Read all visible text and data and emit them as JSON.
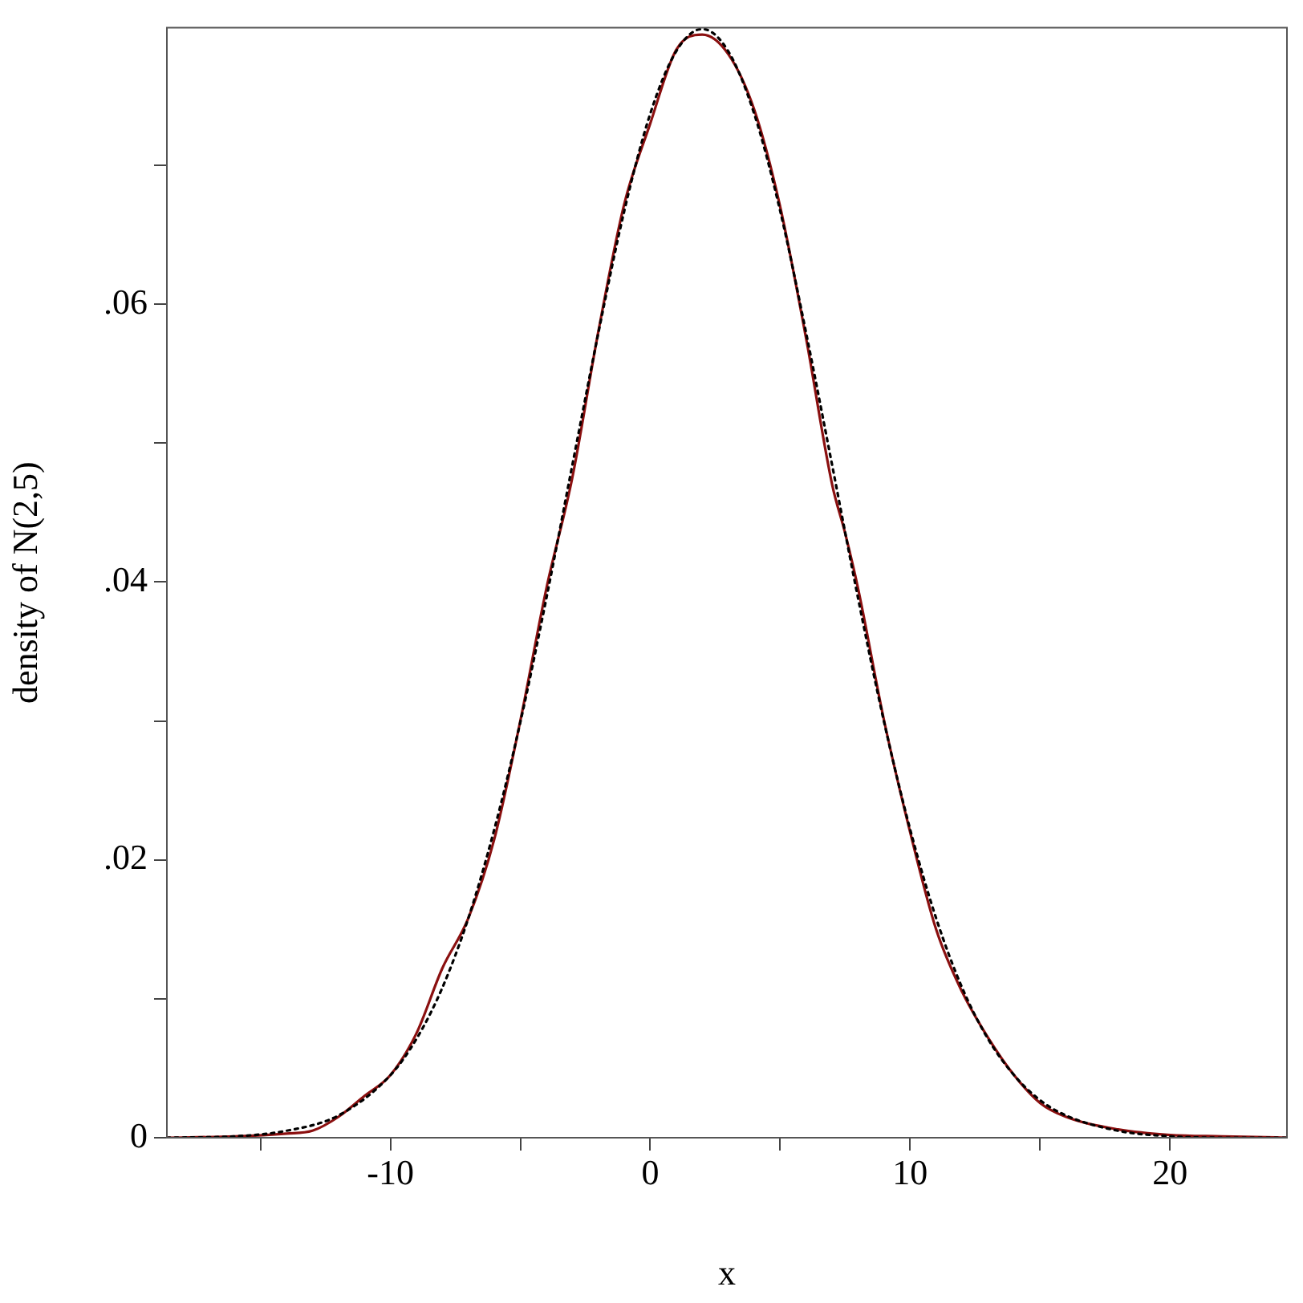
{
  "chart_data": {
    "type": "line",
    "xlabel": "x",
    "ylabel": "density of N(2,5)",
    "xlim": [
      -18.6,
      24.5
    ],
    "ylim": [
      0,
      0.0799
    ],
    "xticks": [
      {
        "value": -15,
        "label": null
      },
      {
        "value": -10,
        "label": "-10"
      },
      {
        "value": -5,
        "label": null
      },
      0,
      {
        "value": 5,
        "label": null
      },
      10,
      {
        "value": 15,
        "label": null
      },
      20
    ],
    "yticks": [
      0,
      {
        "value": 0.01,
        "label": null
      },
      {
        "value": 0.02,
        "label": ".02"
      },
      {
        "value": 0.03,
        "label": null
      },
      {
        "value": 0.04,
        "label": ".04"
      },
      {
        "value": 0.05,
        "label": null
      },
      {
        "value": 0.06,
        "label": ".06"
      },
      {
        "value": 0.07,
        "label": null
      }
    ],
    "marker": "none",
    "legend": false,
    "series": [
      {
        "color": "#000000",
        "line_style": "dotted",
        "x": [
          -18.6,
          -16,
          -14,
          -12,
          -10,
          -9,
          -8,
          -7,
          -6,
          -5,
          -4,
          -3,
          -2,
          -1,
          0,
          1,
          2,
          3,
          4,
          5,
          6,
          7,
          8,
          9,
          10,
          11,
          12,
          13,
          14,
          15,
          16,
          18,
          20,
          22,
          24.5
        ],
        "values": [
          0,
          0.0001,
          0.0005,
          0.0016,
          0.0045,
          0.0071,
          0.0108,
          0.0158,
          0.0222,
          0.0299,
          0.0388,
          0.0484,
          0.0579,
          0.0667,
          0.0737,
          0.0782,
          0.0798,
          0.0782,
          0.0737,
          0.0667,
          0.0579,
          0.0484,
          0.0388,
          0.0299,
          0.0222,
          0.0158,
          0.0108,
          0.0071,
          0.0045,
          0.0027,
          0.0016,
          0.0005,
          0.0001,
          0,
          0
        ]
      },
      {
        "color": "#8b1010",
        "line_style": "solid",
        "x": [
          -18.6,
          -16,
          -14,
          -13,
          -12,
          -11,
          -10,
          -9,
          -8,
          -7,
          -6,
          -5,
          -4,
          -3,
          -2,
          -1,
          0,
          1,
          2,
          3,
          4,
          5,
          6,
          7,
          7.5,
          8,
          9,
          10,
          11,
          12,
          13,
          14,
          15,
          16,
          18,
          20,
          22,
          24.5
        ],
        "values": [
          0,
          0.0001,
          0.0003,
          0.0005,
          0.0015,
          0.003,
          0.0045,
          0.0075,
          0.0122,
          0.0158,
          0.0215,
          0.03,
          0.0395,
          0.0475,
          0.058,
          0.0672,
          0.073,
          0.0783,
          0.0794,
          0.078,
          0.074,
          0.067,
          0.0575,
          0.047,
          0.0435,
          0.0395,
          0.03,
          0.022,
          0.015,
          0.0105,
          0.0072,
          0.0045,
          0.0025,
          0.0015,
          0.0006,
          0.0002,
          0.0001,
          0
        ]
      }
    ]
  }
}
